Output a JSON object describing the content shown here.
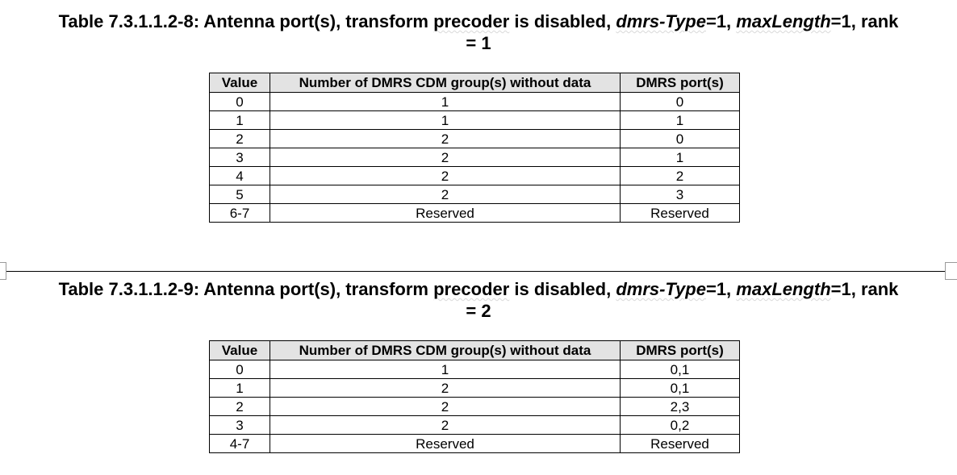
{
  "table1": {
    "caption": {
      "lead": "Table 7.3.1.1.2-8: Antenna port(s), transform ",
      "word_precoder": "precoder",
      "mid1": " is disabled, ",
      "param1": "dmrs-Type",
      "mid2": "=1, ",
      "param2": "maxLength",
      "mid3": "=1, rank",
      "line2": "= 1"
    },
    "headers": [
      "Value",
      "Number of DMRS CDM group(s) without data",
      "DMRS port(s)"
    ],
    "rows": [
      [
        "0",
        "1",
        "0"
      ],
      [
        "1",
        "1",
        "1"
      ],
      [
        "2",
        "2",
        "0"
      ],
      [
        "3",
        "2",
        "1"
      ],
      [
        "4",
        "2",
        "2"
      ],
      [
        "5",
        "2",
        "3"
      ],
      [
        "6-7",
        "Reserved",
        "Reserved"
      ]
    ]
  },
  "table2": {
    "caption": {
      "lead": "Table 7.3.1.1.2-9: Antenna port(s), transform ",
      "word_precoder": "precoder",
      "mid1": " is disabled, ",
      "param1": "dmrs-Type",
      "mid2": "=1, ",
      "param2": "maxLength",
      "mid3": "=1, rank",
      "line2": "= 2"
    },
    "headers": [
      "Value",
      "Number of DMRS CDM group(s) without data",
      "DMRS port(s)"
    ],
    "rows": [
      [
        "0",
        "1",
        "0,1"
      ],
      [
        "1",
        "2",
        "0,1"
      ],
      [
        "2",
        "2",
        "2,3"
      ],
      [
        "3",
        "2",
        "0,2"
      ],
      [
        "4-7",
        "Reserved",
        "Reserved"
      ]
    ]
  }
}
